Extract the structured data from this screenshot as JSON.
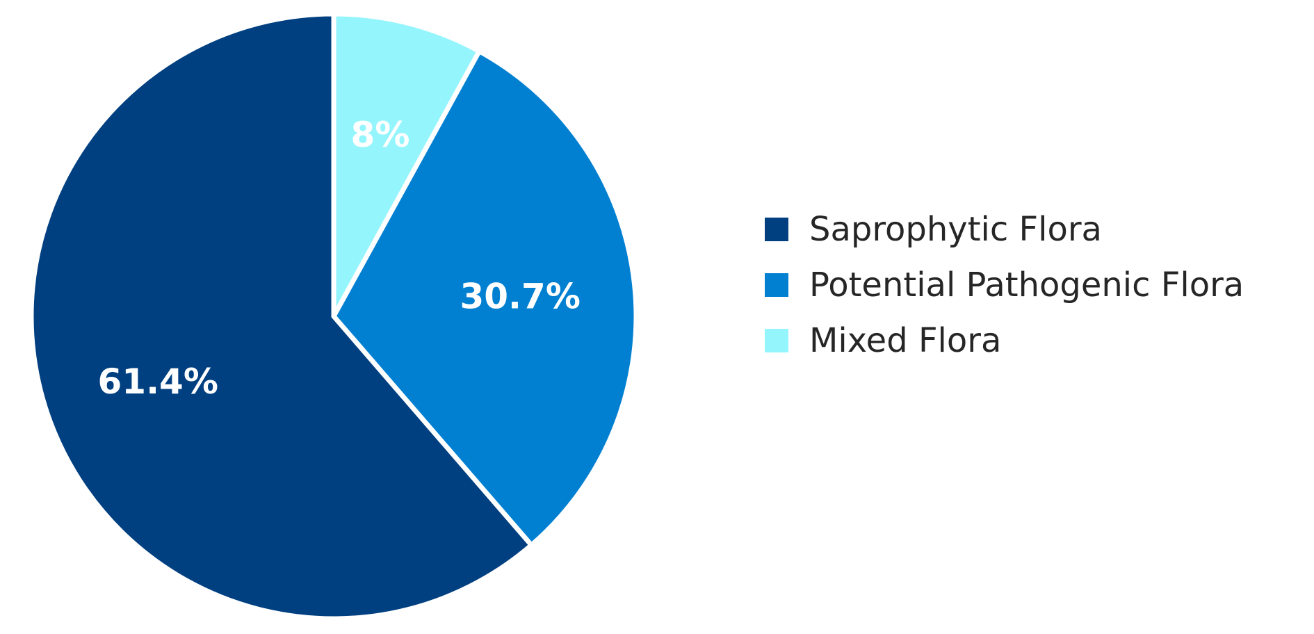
{
  "chart_data": {
    "type": "pie",
    "slices": [
      {
        "label": "Saprophytic Flora",
        "value": 61.4,
        "display": "61.4%",
        "color": "#003f80"
      },
      {
        "label": "Potential Pathogenic Flora",
        "value": 30.7,
        "display": "30.7%",
        "color": "#0180d2"
      },
      {
        "label": "Mixed Flora",
        "value": 8,
        "display": "8%",
        "color": "#95f5fd"
      }
    ],
    "legend_position": "right",
    "start_angle": "12 o'clock, clockwise order: Mixed Flora, Potential Pathogenic Flora, Saprophytic Flora"
  },
  "legend": {
    "items": [
      {
        "label": "Saprophytic Flora",
        "color": "#003f80"
      },
      {
        "label": "Potential Pathogenic Flora",
        "color": "#0180d2"
      },
      {
        "label": "Mixed Flora",
        "color": "#95f5fd"
      }
    ]
  }
}
